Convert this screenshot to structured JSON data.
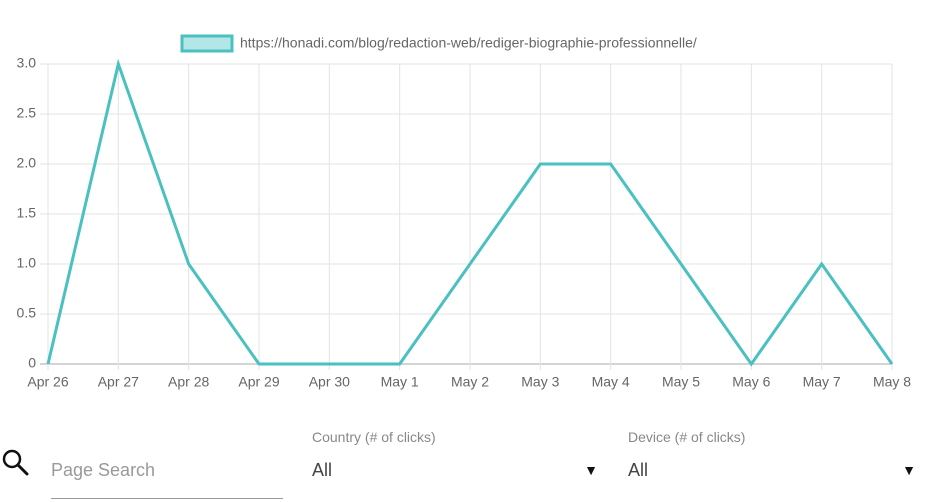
{
  "chart_data": {
    "type": "line",
    "categories": [
      "Apr 26",
      "Apr 27",
      "Apr 28",
      "Apr 29",
      "Apr 30",
      "May 1",
      "May 2",
      "May 3",
      "May 4",
      "May 5",
      "May 6",
      "May 7",
      "May 8"
    ],
    "series": [
      {
        "name": "https://honadi.com/blog/redaction-web/rediger-biographie-professionnelle/",
        "color": "#4bc0c0",
        "fill": "#b3e6e6",
        "values": [
          0,
          3,
          1,
          0,
          0,
          0,
          1,
          2,
          2,
          1,
          0,
          1,
          0
        ]
      }
    ],
    "ylim": [
      0,
      3
    ],
    "yticks": [
      0,
      0.5,
      {
        "value": 1,
        "label": "1.0"
      },
      1.5,
      {
        "value": 2,
        "label": "2.0"
      },
      2.5,
      {
        "value": 3,
        "label": "3.0"
      }
    ],
    "grid": true,
    "legend": "top"
  },
  "controls": {
    "search": {
      "placeholder": "Page Search"
    },
    "country": {
      "label": "Country (# of clicks)",
      "value": "All"
    },
    "device": {
      "label": "Device (# of clicks)",
      "value": "All"
    }
  }
}
